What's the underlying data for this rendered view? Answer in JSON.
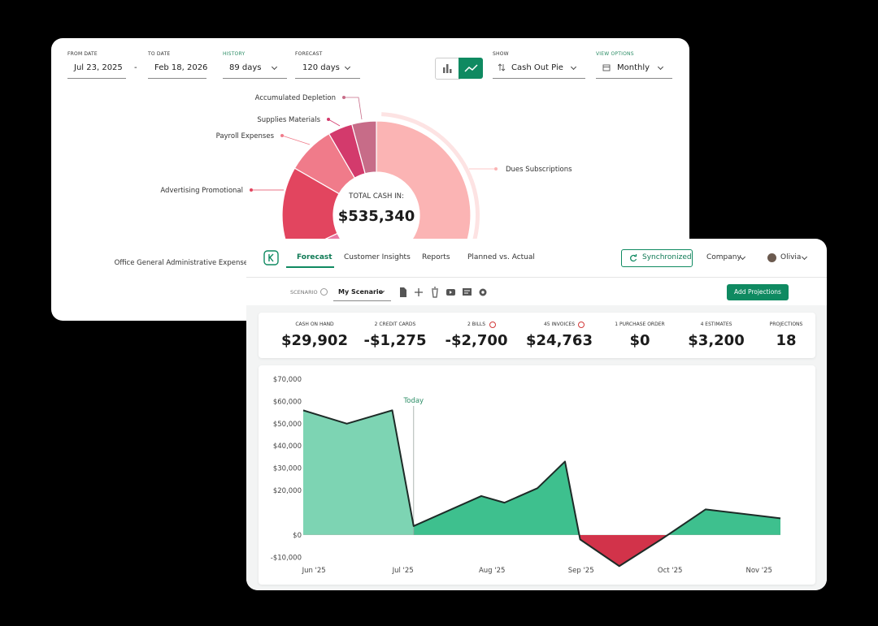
{
  "filters": [
    {
      "label": "FROM DATE",
      "value": "Jul 23, 2025"
    },
    {
      "label": "TO DATE",
      "value": "Feb 18, 2026"
    },
    {
      "label": "HISTORY",
      "value": "89 days"
    },
    {
      "label": "FORECAST",
      "value": "120 days"
    },
    {
      "label": "SHOW",
      "value": "Cash Out Pie"
    },
    {
      "label": "VIEW OPTIONS",
      "value": "Monthly"
    }
  ],
  "date_separator": "-",
  "nav": {
    "tabs": [
      "Forecast",
      "Customer Insights",
      "Reports",
      "Planned vs. Actual"
    ],
    "sync": "Synchronized",
    "company": "Company",
    "user": "Olivia"
  },
  "scenario": {
    "label": "SCENARIO",
    "value": "My Scenario",
    "button": "Add Projections"
  },
  "stats": [
    {
      "label": "CASH ON HAND",
      "value": "$29,902"
    },
    {
      "label": "2 CREDIT CARDS",
      "value": "-$1,275"
    },
    {
      "label": "2 BILLS",
      "value": "-$2,700"
    },
    {
      "label": "45 INVOICES",
      "value": "$24,763"
    },
    {
      "label": "1 PURCHASE ORDER",
      "value": "$0"
    },
    {
      "label": "4 ESTIMATES",
      "value": "$3,200"
    },
    {
      "label": "PROJECTIONS",
      "value": "18"
    }
  ],
  "chart_data": [
    {
      "type": "pie",
      "center_label": "TOTAL CASH IN:",
      "center_value": "$535,340",
      "categories": [
        "Dues Subscriptions",
        "Office General Administrative Expense",
        "Advertising Promotional",
        "Payroll Expenses",
        "Supplies Materials",
        "Accumulated Depletion"
      ],
      "values": [
        52.8,
        15.3,
        15.3,
        8.3,
        4.2,
        4.2
      ],
      "colors": [
        "#fbb4b4",
        "#ea78a3",
        "#e2455f",
        "#f07b8a",
        "#d33a6c",
        "#c76c88"
      ]
    },
    {
      "type": "area",
      "x": [
        -0.12,
        0.37,
        0.88,
        1.12,
        1.88,
        2.14,
        2.51,
        2.82,
        2.99,
        3.43,
        3.9,
        4.4,
        5.24
      ],
      "values": [
        56000,
        50000,
        56000,
        4000,
        17500,
        14500,
        21000,
        33000,
        -2000,
        -14000,
        -2000,
        11500,
        7500
      ],
      "color": "#3ec08e",
      "history_color": "#7dd4b3",
      "negative_color": "#d2334a",
      "line_color": "#1d2b27",
      "annotation": {
        "text": "Today",
        "x": 1.12
      },
      "xlim": [
        -0.12,
        5.24
      ],
      "xticks": [
        {
          "value": 0,
          "label": "Jun '25"
        },
        {
          "value": 1,
          "label": "Jul '25"
        },
        {
          "value": 2,
          "label": "Aug '25"
        },
        {
          "value": 3,
          "label": "Sep '25"
        },
        {
          "value": 4,
          "label": "Oct '25"
        },
        {
          "value": 5,
          "label": "Nov '25"
        }
      ],
      "ylim": [
        -15000,
        70000
      ],
      "yticks": [
        {
          "value": 70000,
          "label": "$70,000"
        },
        {
          "value": 60000,
          "label": "$60,000"
        },
        {
          "value": 50000,
          "label": "$50,000"
        },
        {
          "value": 40000,
          "label": "$40,000"
        },
        {
          "value": 30000,
          "label": "$30,000"
        },
        {
          "value": 20000,
          "label": "$20,000"
        },
        {
          "value": 0,
          "label": "$0"
        },
        {
          "value": -10000,
          "label": "-$10,000"
        }
      ],
      "grid": false
    }
  ]
}
